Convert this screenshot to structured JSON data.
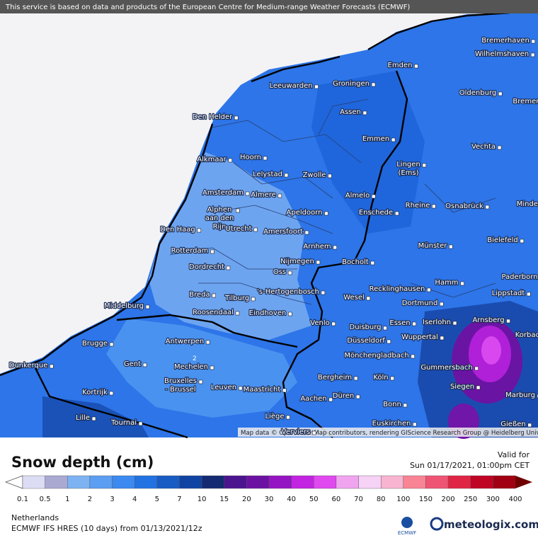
{
  "header": {
    "notice": "This service is based on data and products of the European Centre for Medium-range Weather Forecasts (ECMWF)"
  },
  "map": {
    "cities": [
      "Bremerhaven",
      "Wilhelmshaven",
      "Emden",
      "Leeuwarden",
      "Groningen",
      "Oldenburg",
      "Bremen",
      "Den Helder",
      "Assen",
      "Emmen",
      "Vechta",
      "Alkmaar",
      "Hoorn",
      "Lelystad",
      "Zwolle",
      [
        "Lingen",
        "(Ems)"
      ],
      "Amsterdam",
      "Almere",
      "Almelo",
      "Rheine",
      "Osnabrück",
      "Minden",
      [
        "Alphen",
        "aan den",
        "Rijn"
      ],
      "Apeldoorn",
      "Enschede",
      "Den Haag",
      "Utrecht",
      "Amersfoort",
      "Bielefeld",
      "Rotterdam",
      "Arnhem",
      "Münster",
      "Nijmegen",
      "Bocholt",
      "Dordrecht",
      "Oss",
      "Paderborn",
      "Hamm",
      "Breda",
      "Tilburg",
      "'s-Hertogenbosch",
      "Recklinghausen",
      "Wesel",
      "Lippstadt",
      "Middelburg",
      "Dortmund",
      "Roosendaal",
      "Eindhoven",
      "Venlo",
      "Essen",
      "Iserlohn",
      "Arnsberg",
      "Korbach",
      "Duisburg",
      "Wuppertal",
      "Düsseldorf",
      "Antwerpen",
      "Brugge",
      "Mönchengladbach",
      "Gent",
      "Mechelen",
      "Gummersbach",
      "Bergheim",
      "Köln",
      [
        "Bruxelles",
        "- Brussel"
      ],
      "Leuven",
      "Maastricht",
      "Siegen",
      "Kortrijk",
      "Düren",
      "Marburg",
      "Aachen",
      "Bonn",
      "Lille",
      "Liège",
      "Tournai",
      "Euskirchen",
      "Gießen",
      "Dunkerque",
      "Verviers"
    ],
    "contour_labels": [
      "2"
    ],
    "attribution": "Map data © OpenStreetMap contributors, rendering GIScience Research Group @ Heidelberg University"
  },
  "legend": {
    "title": "Snow depth (cm)",
    "items": [
      {
        "value": 0.1,
        "color": "#dcdcf4"
      },
      {
        "value": 0.5,
        "color": "#a9a9d2"
      },
      {
        "value": 1,
        "color": "#7db3f2"
      },
      {
        "value": 2,
        "color": "#5b9ef2"
      },
      {
        "value": 3,
        "color": "#3c89f0"
      },
      {
        "value": 4,
        "color": "#2272e2"
      },
      {
        "value": 5,
        "color": "#185cc4"
      },
      {
        "value": 7,
        "color": "#1044a2"
      },
      {
        "value": 10,
        "color": "#142a72"
      },
      {
        "value": 15,
        "color": "#4c148e"
      },
      {
        "value": 20,
        "color": "#6c12a2"
      },
      {
        "value": 30,
        "color": "#9414c4"
      },
      {
        "value": 40,
        "color": "#c224e2"
      },
      {
        "value": 50,
        "color": "#e048f0"
      },
      {
        "value": 60,
        "color": "#f0a4f0"
      },
      {
        "value": 70,
        "color": "#f6d2f6"
      },
      {
        "value": 80,
        "color": "#f8b4d0"
      },
      {
        "value": 100,
        "color": "#f88494"
      },
      {
        "value": 150,
        "color": "#f05474"
      },
      {
        "value": 200,
        "color": "#e02444"
      },
      {
        "value": 250,
        "color": "#c00424"
      },
      {
        "value": 300,
        "color": "#a00012"
      },
      {
        "value": 400,
        "color": "#700000"
      }
    ]
  },
  "valid": {
    "label": "Valid for",
    "time": "Sun 01/17/2021, 01:00pm CET"
  },
  "footer": {
    "region": "Netherlands",
    "model": "ECMWF IFS HRES (10 days) from 01/13/2021/12z",
    "logos": [
      "ECMWF",
      "meteologix.com"
    ]
  }
}
